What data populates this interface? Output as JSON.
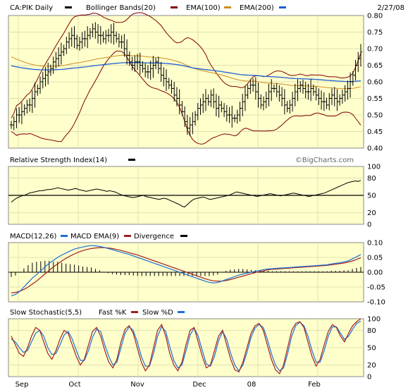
{
  "header": {
    "symbol": "CA:PIK Daily",
    "bollinger": "Bollinger Bands(20)",
    "ema100": "EMA(100)",
    "ema200": "EMA(200)",
    "date": "2/27/08"
  },
  "watermark": "©BigCharts.com",
  "colors": {
    "background": "#ffffcc",
    "frame": "#888888",
    "price": "#000000",
    "bollinger": "#800000",
    "ema100": "#d08c20",
    "ema200": "#1f5fd6",
    "rsi": "#000000",
    "macd": "#1f6fd6",
    "macd_ema": "#a02020",
    "divergence": "#000000",
    "fast_k": "#a02020",
    "slow_d": "#1f6fd6"
  },
  "x_axis": {
    "labels": [
      "Sep",
      "Oct",
      "Nov",
      "Dec",
      "08",
      "Feb"
    ]
  },
  "chart_data": [
    {
      "type": "ohlc",
      "name": "price",
      "ylim": [
        0.4,
        0.8
      ],
      "yticks": [
        "0.80",
        "0.75",
        "0.70",
        "0.65",
        "0.60",
        "0.55",
        "0.50",
        "0.45",
        "0.40"
      ],
      "close": [
        0.47,
        0.48,
        0.5,
        0.5,
        0.51,
        0.52,
        0.53,
        0.53,
        0.55,
        0.57,
        0.58,
        0.6,
        0.61,
        0.62,
        0.63,
        0.64,
        0.66,
        0.67,
        0.68,
        0.69,
        0.7,
        0.72,
        0.73,
        0.74,
        0.73,
        0.71,
        0.72,
        0.73,
        0.73,
        0.74,
        0.75,
        0.76,
        0.75,
        0.74,
        0.74,
        0.73,
        0.74,
        0.74,
        0.75,
        0.74,
        0.73,
        0.72,
        0.72,
        0.7,
        0.68,
        0.66,
        0.65,
        0.66,
        0.66,
        0.65,
        0.64,
        0.63,
        0.63,
        0.64,
        0.65,
        0.66,
        0.64,
        0.62,
        0.61,
        0.6,
        0.59,
        0.58,
        0.56,
        0.55,
        0.53,
        0.51,
        0.48,
        0.46,
        0.47,
        0.48,
        0.5,
        0.52,
        0.53,
        0.54,
        0.55,
        0.54,
        0.56,
        0.54,
        0.52,
        0.53,
        0.52,
        0.51,
        0.5,
        0.5,
        0.49,
        0.49,
        0.5,
        0.52,
        0.54,
        0.56,
        0.58,
        0.59,
        0.59,
        0.57,
        0.55,
        0.53,
        0.54,
        0.55,
        0.57,
        0.58,
        0.58,
        0.57,
        0.56,
        0.55,
        0.53,
        0.52,
        0.53,
        0.55,
        0.57,
        0.58,
        0.59,
        0.58,
        0.57,
        0.57,
        0.58,
        0.57,
        0.56,
        0.55,
        0.54,
        0.54,
        0.53,
        0.55,
        0.56,
        0.55,
        0.54,
        0.55,
        0.56,
        0.57,
        0.58,
        0.6,
        0.62,
        0.65,
        0.67,
        0.69
      ]
    },
    {
      "type": "line",
      "name": "rsi",
      "title": "Relative Strength Index(14)",
      "ylim": [
        0,
        100
      ],
      "yticks": [
        "100",
        "80",
        "50",
        "20",
        "0"
      ],
      "hline": 50,
      "values": [
        38,
        42,
        45,
        47,
        49,
        50,
        52,
        54,
        55,
        56,
        57,
        58,
        58,
        59,
        60,
        60,
        61,
        62,
        63,
        62,
        61,
        60,
        59,
        60,
        61,
        62,
        60,
        59,
        58,
        57,
        58,
        59,
        60,
        61,
        60,
        59,
        58,
        57,
        58,
        57,
        56,
        54,
        52,
        50,
        49,
        48,
        47,
        46,
        47,
        48,
        49,
        50,
        48,
        47,
        46,
        45,
        44,
        43,
        44,
        45,
        44,
        42,
        40,
        38,
        36,
        34,
        31,
        30,
        34,
        38,
        42,
        44,
        45,
        46,
        47,
        46,
        44,
        43,
        44,
        45,
        46,
        47,
        48,
        49,
        50,
        52,
        54,
        56,
        55,
        54,
        53,
        52,
        51,
        50,
        49,
        48,
        49,
        50,
        51,
        52,
        53,
        52,
        51,
        50,
        49,
        50,
        51,
        52,
        53,
        54,
        53,
        52,
        51,
        50,
        49,
        48,
        49,
        50,
        51,
        52,
        53,
        54,
        56,
        58,
        60,
        62,
        64,
        66,
        68,
        70,
        72,
        73,
        74,
        75,
        74,
        76
      ]
    },
    {
      "type": "line",
      "name": "macd",
      "title": "MACD(12,26)",
      "macd_ema_label": "MACD EMA(9)",
      "divergence_label": "Divergence",
      "ylim": [
        -0.1,
        0.1
      ],
      "yticks": [
        "0.10",
        "0.05",
        "0.00",
        "-0.05",
        "-0.10"
      ],
      "macd": [
        -0.08,
        -0.075,
        -0.065,
        -0.05,
        -0.035,
        -0.02,
        -0.008,
        0.005,
        0.018,
        0.03,
        0.04,
        0.05,
        0.058,
        0.065,
        0.072,
        0.078,
        0.082,
        0.085,
        0.088,
        0.09,
        0.089,
        0.087,
        0.084,
        0.08,
        0.076,
        0.072,
        0.068,
        0.064,
        0.06,
        0.055,
        0.05,
        0.045,
        0.04,
        0.035,
        0.03,
        0.025,
        0.02,
        0.015,
        0.01,
        0.005,
        0.0,
        -0.005,
        -0.01,
        -0.015,
        -0.02,
        -0.025,
        -0.03,
        -0.034,
        -0.036,
        -0.035,
        -0.03,
        -0.025,
        -0.02,
        -0.015,
        -0.01,
        -0.006,
        -0.003,
        0.0,
        0.003,
        0.006,
        0.009,
        0.011,
        0.012,
        0.013,
        0.014,
        0.015,
        0.016,
        0.017,
        0.018,
        0.019,
        0.02,
        0.021,
        0.022,
        0.023,
        0.024,
        0.025,
        0.028,
        0.03,
        0.032,
        0.035,
        0.038,
        0.045,
        0.052,
        0.06
      ],
      "signal": [
        -0.07,
        -0.068,
        -0.064,
        -0.058,
        -0.05,
        -0.04,
        -0.03,
        -0.018,
        -0.006,
        0.006,
        0.018,
        0.028,
        0.038,
        0.047,
        0.055,
        0.062,
        0.068,
        0.073,
        0.077,
        0.08,
        0.082,
        0.083,
        0.083,
        0.082,
        0.08,
        0.077,
        0.074,
        0.07,
        0.066,
        0.062,
        0.058,
        0.053,
        0.048,
        0.043,
        0.038,
        0.033,
        0.028,
        0.023,
        0.018,
        0.013,
        0.008,
        0.003,
        -0.002,
        -0.007,
        -0.012,
        -0.017,
        -0.022,
        -0.026,
        -0.029,
        -0.03,
        -0.03,
        -0.028,
        -0.025,
        -0.021,
        -0.017,
        -0.013,
        -0.009,
        -0.005,
        -0.001,
        0.002,
        0.005,
        0.008,
        0.01,
        0.011,
        0.012,
        0.013,
        0.014,
        0.015,
        0.016,
        0.017,
        0.018,
        0.019,
        0.02,
        0.021,
        0.022,
        0.023,
        0.025,
        0.027,
        0.029,
        0.031,
        0.034,
        0.038,
        0.043,
        0.049
      ]
    },
    {
      "type": "line",
      "name": "stochastic",
      "title": "Slow Stochastic(5,5)",
      "fast_label": "Fast %K",
      "slow_label": "Slow %D",
      "ylim": [
        0,
        100
      ],
      "yticks": [
        "100",
        "80",
        "50",
        "20",
        "0"
      ],
      "fast": [
        70,
        55,
        40,
        35,
        50,
        70,
        85,
        80,
        60,
        40,
        30,
        45,
        65,
        80,
        75,
        55,
        35,
        20,
        30,
        55,
        78,
        85,
        70,
        45,
        25,
        15,
        30,
        60,
        82,
        88,
        75,
        50,
        25,
        10,
        20,
        50,
        80,
        90,
        70,
        40,
        20,
        10,
        25,
        55,
        80,
        85,
        60,
        35,
        15,
        20,
        45,
        70,
        80,
        55,
        30,
        12,
        8,
        25,
        50,
        75,
        88,
        92,
        80,
        55,
        30,
        12,
        5,
        20,
        50,
        80,
        92,
        95,
        85,
        60,
        35,
        18,
        30,
        55,
        78,
        90,
        85,
        70,
        60,
        75,
        88,
        95,
        100
      ],
      "slow": [
        65,
        60,
        50,
        42,
        45,
        60,
        75,
        80,
        70,
        50,
        38,
        40,
        55,
        72,
        78,
        65,
        45,
        28,
        28,
        45,
        68,
        82,
        78,
        55,
        35,
        20,
        25,
        50,
        75,
        86,
        80,
        60,
        35,
        18,
        18,
        40,
        70,
        86,
        78,
        52,
        28,
        15,
        20,
        45,
        72,
        84,
        70,
        45,
        22,
        18,
        35,
        62,
        78,
        65,
        40,
        20,
        10,
        20,
        42,
        68,
        84,
        90,
        85,
        65,
        40,
        20,
        10,
        15,
        40,
        70,
        88,
        94,
        88,
        70,
        45,
        25,
        25,
        45,
        70,
        86,
        86,
        75,
        64,
        70,
        82,
        92,
        96
      ]
    }
  ]
}
